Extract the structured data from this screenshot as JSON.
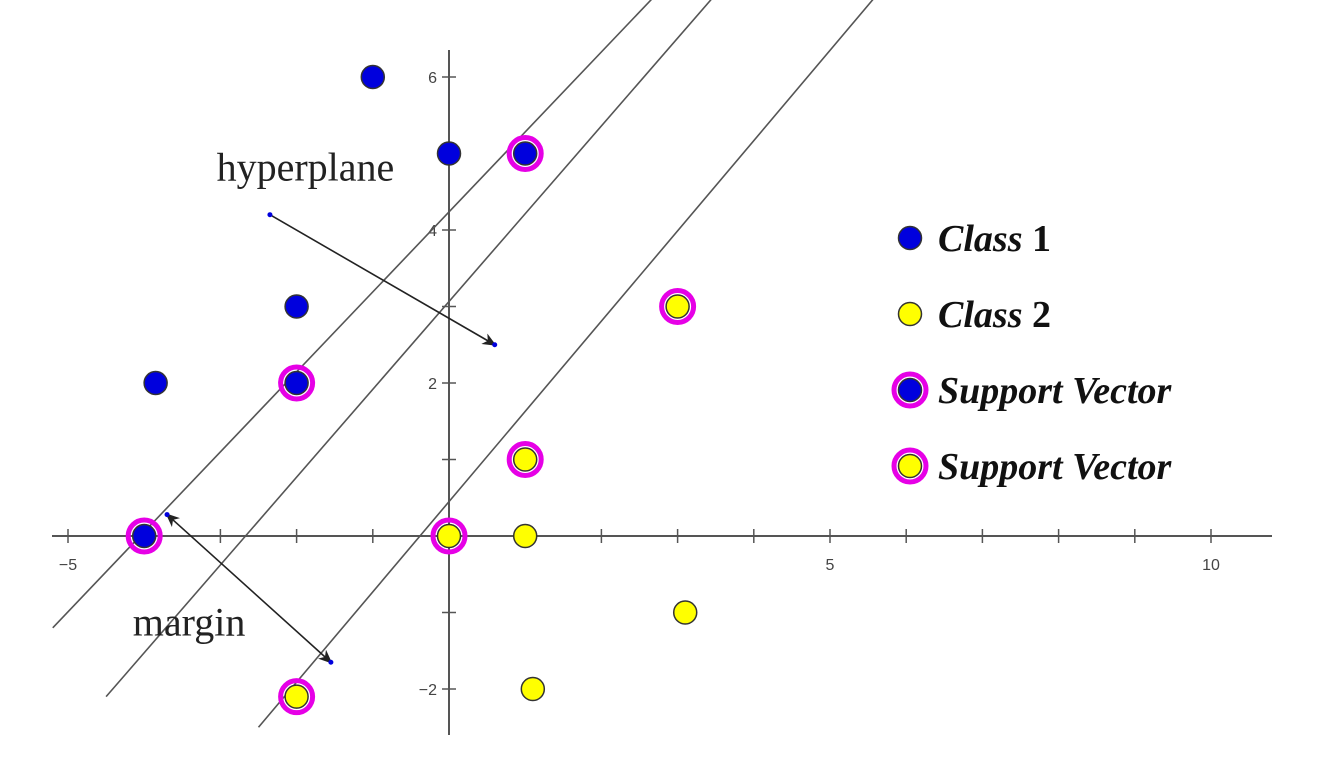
{
  "chart_data": {
    "type": "scatter",
    "xlim": [
      -5,
      10
    ],
    "ylim": [
      -2,
      6
    ],
    "x_ticks": [
      -5,
      5,
      10
    ],
    "y_ticks": [
      6,
      4,
      2,
      -2
    ],
    "grid": false,
    "legend_position": "right",
    "colors": {
      "class1": "#0000dd",
      "class2": "#ffff00",
      "support_ring": "#e600e6",
      "line": "#555555",
      "arrow": "#222222"
    },
    "series": [
      {
        "key": "class1",
        "name_italic": "Class",
        "name_bold": "1",
        "points": [
          [
            -1,
            6
          ],
          [
            0,
            5
          ],
          [
            -2,
            3
          ],
          [
            -3.85,
            2
          ]
        ]
      },
      {
        "key": "class2",
        "name_italic": "Class",
        "name_bold": "2",
        "points": [
          [
            1,
            0
          ],
          [
            3.1,
            -1
          ],
          [
            1.1,
            -2
          ]
        ]
      },
      {
        "key": "sv1",
        "name_italic": "Support Vector",
        "name_bold": "",
        "points": [
          [
            1,
            5
          ],
          [
            -2,
            2
          ],
          [
            -4,
            0
          ]
        ]
      },
      {
        "key": "sv2",
        "name_italic": "Support Vector",
        "name_bold": "",
        "points": [
          [
            3,
            3
          ],
          [
            1,
            1
          ],
          [
            0,
            0
          ],
          [
            -2,
            -2.1
          ]
        ]
      }
    ],
    "lines": [
      {
        "name": "upper-margin",
        "from": [
          -5.2,
          -1.2
        ],
        "to": [
          3.6,
          8
        ]
      },
      {
        "name": "hyperplane",
        "from": [
          -4.5,
          -2.1
        ],
        "to": [
          4.3,
          8
        ]
      },
      {
        "name": "lower-margin",
        "from": [
          -2.5,
          -2.5
        ],
        "to": [
          6.4,
          8
        ]
      }
    ],
    "annotations": [
      {
        "key": "hyperplane",
        "text": "hyperplane",
        "label_at": [
          -3.05,
          4.65
        ],
        "arrow_from": [
          -2.35,
          4.2
        ],
        "arrow_to": [
          0.6,
          2.5
        ],
        "double": false
      },
      {
        "key": "margin",
        "text": "margin",
        "label_at": [
          -4.15,
          -1.3
        ],
        "arrow_from": [
          -3.7,
          0.28
        ],
        "arrow_to": [
          -1.55,
          -1.65
        ],
        "double": true
      }
    ]
  }
}
